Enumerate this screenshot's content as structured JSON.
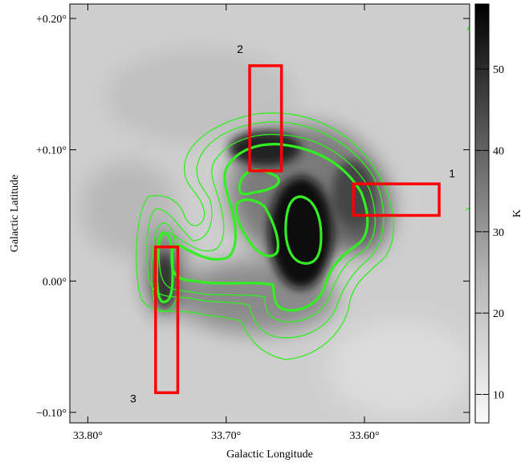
{
  "chart_data": {
    "type": "image",
    "x_label": "Galactic Longitude",
    "y_label": "Galactic Latitude",
    "xlim": [
      33.813,
      33.524
    ],
    "ylim": [
      -0.108,
      0.211
    ],
    "xticks": [
      {
        "value": 33.8,
        "label": "33.80°"
      },
      {
        "value": 33.7,
        "label": "33.70°"
      },
      {
        "value": 33.6,
        "label": "33.60°"
      }
    ],
    "yticks": [
      {
        "value": 0.2,
        "label": "+0.20°"
      },
      {
        "value": 0.1,
        "label": "+0.10°"
      },
      {
        "value": 0.0,
        "label": "0.00°"
      },
      {
        "value": -0.1,
        "label": "−0.10°"
      }
    ],
    "colorbar": {
      "label": "K",
      "lim": [
        6.5,
        58
      ],
      "ticks": [
        10,
        20,
        30,
        40,
        50
      ]
    },
    "regions": [
      {
        "label": "1",
        "color": "#ff0000",
        "lon": [
          33.608,
          33.546
        ],
        "lat": [
          0.074,
          0.05
        ]
      },
      {
        "label": "2",
        "color": "#ff0000",
        "lon": [
          33.683,
          33.66
        ],
        "lat": [
          0.164,
          0.084
        ]
      },
      {
        "label": "3",
        "color": "#ff0000",
        "lon": [
          33.751,
          33.735
        ],
        "lat": [
          0.026,
          -0.085
        ]
      }
    ]
  }
}
